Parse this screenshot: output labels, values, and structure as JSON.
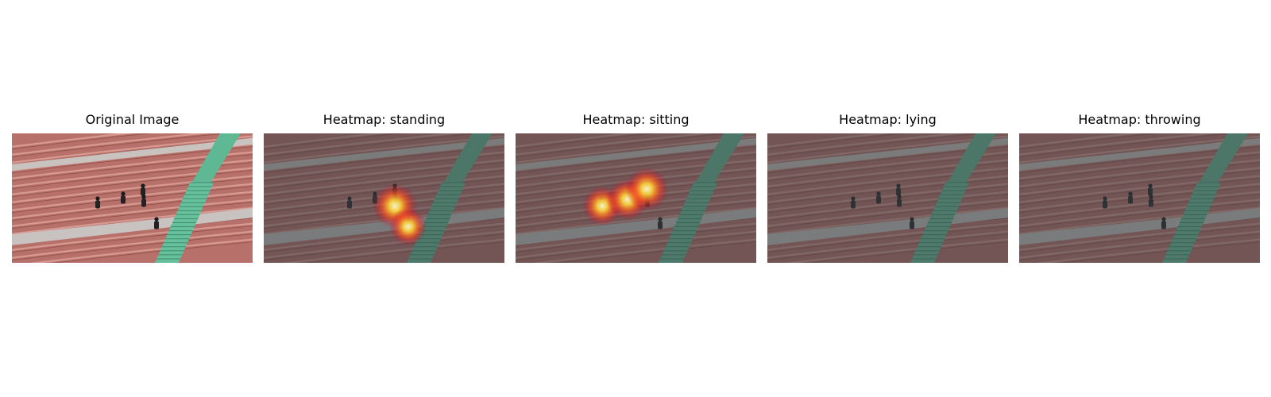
{
  "panels": [
    {
      "title": "Original Image",
      "kind": "original",
      "hotspots": []
    },
    {
      "title": "Heatmap: standing",
      "kind": "heatmap",
      "hotspots": [
        {
          "cx": 0.545,
          "cy": 0.56,
          "intensity": 1.0
        },
        {
          "cx": 0.6,
          "cy": 0.72,
          "intensity": 0.8
        }
      ]
    },
    {
      "title": "Heatmap: sitting",
      "kind": "heatmap",
      "hotspots": [
        {
          "cx": 0.36,
          "cy": 0.56,
          "intensity": 0.85
        },
        {
          "cx": 0.465,
          "cy": 0.51,
          "intensity": 0.9
        },
        {
          "cx": 0.545,
          "cy": 0.43,
          "intensity": 0.95
        }
      ]
    },
    {
      "title": "Heatmap: lying",
      "kind": "heatmap",
      "hotspots": []
    },
    {
      "title": "Heatmap: throwing",
      "kind": "heatmap",
      "hotspots": []
    }
  ]
}
